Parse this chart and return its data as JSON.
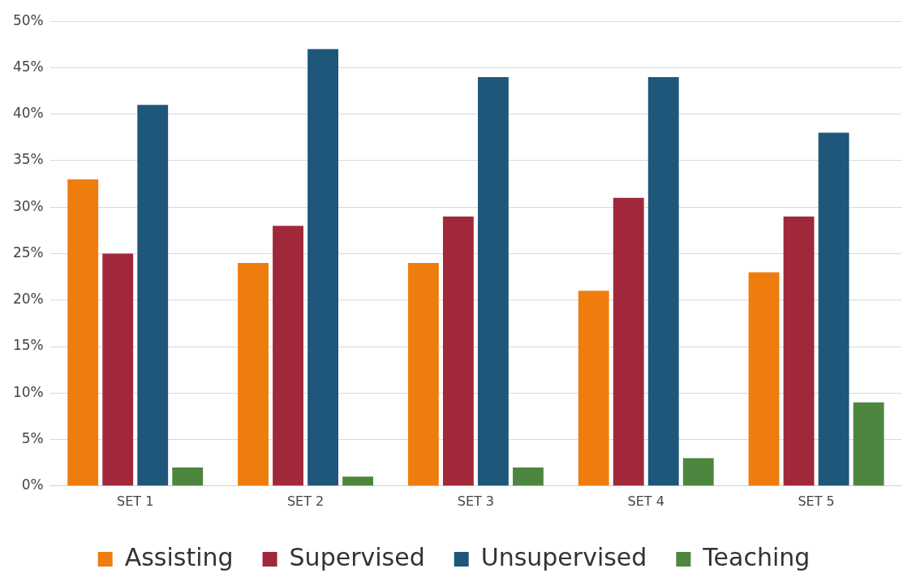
{
  "chart_data": {
    "type": "bar",
    "categories": [
      "SET 1",
      "SET 2",
      "SET 3",
      "SET 4",
      "SET 5"
    ],
    "series": [
      {
        "name": "Assisting",
        "color": "#ee7d0e",
        "values": [
          33,
          24,
          24,
          21,
          23
        ]
      },
      {
        "name": "Supervised",
        "color": "#a1283a",
        "values": [
          25,
          28,
          29,
          31,
          29
        ]
      },
      {
        "name": "Unsupervised",
        "color": "#1e577a",
        "values": [
          41,
          47,
          44,
          44,
          38
        ]
      },
      {
        "name": "Teaching",
        "color": "#4d873f",
        "values": [
          2,
          1,
          2,
          3,
          9
        ]
      }
    ],
    "ylim": [
      0,
      50
    ],
    "yticks": [
      {
        "value": 0,
        "label": "0%"
      },
      {
        "value": 5,
        "label": "5%"
      },
      {
        "value": 10,
        "label": "10%"
      },
      {
        "value": 15,
        "label": "15%"
      },
      {
        "value": 20,
        "label": "20%"
      },
      {
        "value": 25,
        "label": "25%"
      },
      {
        "value": 30,
        "label": "30%"
      },
      {
        "value": 35,
        "label": "35%"
      },
      {
        "value": 40,
        "label": "40%"
      },
      {
        "value": 45,
        "label": "45%"
      },
      {
        "value": 50,
        "label": "50%"
      }
    ],
    "grid": "y",
    "legend": "bottom"
  }
}
